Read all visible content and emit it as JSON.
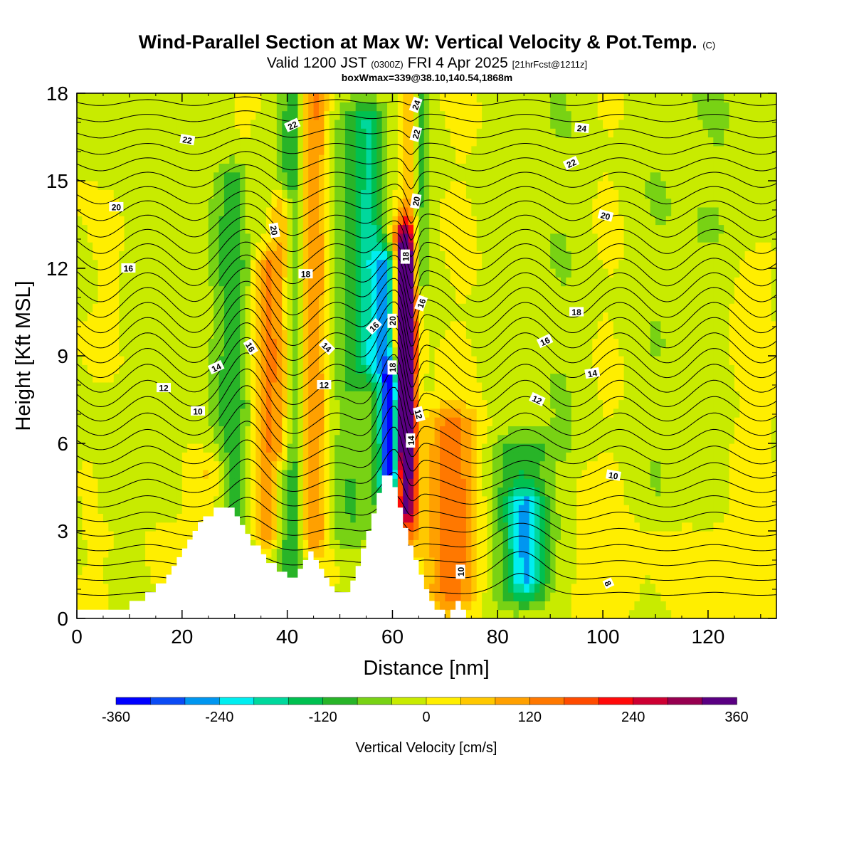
{
  "header": {
    "title_main": "Wind-Parallel Section at Max W: Vertical Velocity & Pot.Temp.",
    "title_mark": "(C)",
    "valid_prefix": "Valid 1200 JST",
    "valid_utc": "(0300Z)",
    "valid_date": "FRI 4 Apr 2025",
    "fcst": "[21hrFcst@1211z]",
    "boxinfo": "boxWmax=339@38.10,140.54,1868m"
  },
  "chart_data": {
    "type": "heatmap",
    "title": "Wind-Parallel Section at Max W: Vertical Velocity & Pot.Temp.",
    "xlabel": "Distance [nm]",
    "ylabel": "Height [Kft MSL]",
    "xlim": [
      0,
      133
    ],
    "ylim": [
      0,
      18
    ],
    "xticks": [
      0,
      20,
      40,
      60,
      80,
      100,
      120
    ],
    "yticks": [
      0,
      3,
      6,
      9,
      12,
      15,
      18
    ],
    "grid": false,
    "colorbar": {
      "title": "Vertical Velocity [cm/s]",
      "placement": "bottom",
      "range": [
        -360,
        360
      ],
      "labels": [
        "-360",
        "-240",
        "-120",
        "0",
        "120",
        "240",
        "360"
      ],
      "label_values": [
        -360,
        -240,
        -120,
        0,
        120,
        240,
        360
      ],
      "colors": [
        "#0000ff",
        "#0b4bf5",
        "#0096f0",
        "#00eef0",
        "#00d89c",
        "#00c050",
        "#28b428",
        "#78d214",
        "#c8eb00",
        "#ffee00",
        "#ffc800",
        "#ffa000",
        "#ff7800",
        "#ff4b00",
        "#ff0a0a",
        "#cd0032",
        "#960050",
        "#5a0082"
      ]
    },
    "terrain": [
      [
        0,
        0.3
      ],
      [
        10,
        0.3
      ],
      [
        10,
        0.6
      ],
      [
        13,
        0.6
      ],
      [
        13,
        0.9
      ],
      [
        15,
        0.9
      ],
      [
        15,
        1.2
      ],
      [
        17,
        1.2
      ],
      [
        17,
        1.5
      ],
      [
        18,
        1.5
      ],
      [
        18,
        1.8
      ],
      [
        19,
        1.8
      ],
      [
        19,
        2.1
      ],
      [
        20,
        2.1
      ],
      [
        20,
        2.4
      ],
      [
        21,
        2.4
      ],
      [
        21,
        2.7
      ],
      [
        22,
        2.7
      ],
      [
        22,
        3.0
      ],
      [
        23,
        3.0
      ],
      [
        23,
        3.3
      ],
      [
        24,
        3.3
      ],
      [
        24,
        3.5
      ],
      [
        26,
        3.5
      ],
      [
        26,
        3.8
      ],
      [
        30,
        3.8
      ],
      [
        30,
        3.5
      ],
      [
        31,
        3.5
      ],
      [
        31,
        3.2
      ],
      [
        32,
        3.2
      ],
      [
        32,
        2.9
      ],
      [
        33,
        2.9
      ],
      [
        33,
        2.5
      ],
      [
        35,
        2.5
      ],
      [
        35,
        2.2
      ],
      [
        36,
        2.2
      ],
      [
        36,
        1.9
      ],
      [
        38,
        1.9
      ],
      [
        38,
        1.6
      ],
      [
        40,
        1.6
      ],
      [
        40,
        1.4
      ],
      [
        42,
        1.4
      ],
      [
        42,
        1.7
      ],
      [
        43,
        1.7
      ],
      [
        43,
        2.0
      ],
      [
        44,
        2.0
      ],
      [
        44,
        2.3
      ],
      [
        45,
        2.3
      ],
      [
        45,
        2.0
      ],
      [
        46,
        2.0
      ],
      [
        46,
        1.7
      ],
      [
        47,
        1.7
      ],
      [
        47,
        1.4
      ],
      [
        48,
        1.4
      ],
      [
        48,
        1.1
      ],
      [
        49,
        1.1
      ],
      [
        49,
        0.9
      ],
      [
        52,
        0.9
      ],
      [
        52,
        1.3
      ],
      [
        53,
        1.3
      ],
      [
        53,
        1.8
      ],
      [
        54,
        1.8
      ],
      [
        54,
        2.4
      ],
      [
        55,
        2.4
      ],
      [
        55,
        3.0
      ],
      [
        56,
        3.0
      ],
      [
        56,
        3.6
      ],
      [
        57,
        3.6
      ],
      [
        57,
        4.3
      ],
      [
        58,
        4.3
      ],
      [
        58,
        4.9
      ],
      [
        60,
        4.9
      ],
      [
        60,
        4.5
      ],
      [
        61,
        4.5
      ],
      [
        61,
        3.8
      ],
      [
        62,
        3.8
      ],
      [
        62,
        3.1
      ],
      [
        63,
        3.1
      ],
      [
        63,
        2.5
      ],
      [
        64,
        2.5
      ],
      [
        64,
        2.0
      ],
      [
        65,
        2.0
      ],
      [
        65,
        1.5
      ],
      [
        66,
        1.5
      ],
      [
        66,
        1.0
      ],
      [
        67,
        1.0
      ],
      [
        67,
        0.6
      ],
      [
        68,
        0.6
      ],
      [
        68,
        0.3
      ],
      [
        70,
        0.3
      ],
      [
        70,
        0.0
      ],
      [
        71,
        0.0
      ],
      [
        71,
        0.3
      ],
      [
        72,
        0.3
      ],
      [
        72,
        0.6
      ],
      [
        73,
        0.6
      ],
      [
        73,
        0.3
      ],
      [
        74,
        0.3
      ],
      [
        74,
        0.0
      ],
      [
        133,
        0.0
      ]
    ],
    "field_blobs": [
      {
        "x": 31,
        "y0": 1.5,
        "y1": 15,
        "w": 4.5,
        "v": -140
      },
      {
        "x": 33,
        "y0": 2,
        "y1": 15,
        "w": 2.5,
        "v": 80
      },
      {
        "x": 36,
        "y0": 3,
        "y1": 12,
        "w": 2,
        "v": 140
      },
      {
        "x": 39,
        "y0": 6,
        "y1": 14,
        "w": 2,
        "v": 130
      },
      {
        "x": 41,
        "y0": 1.5,
        "y1": 18,
        "w": 2.5,
        "v": -110
      },
      {
        "x": 45,
        "y0": 3,
        "y1": 18,
        "w": 2.5,
        "v": 120
      },
      {
        "x": 52,
        "y0": 3,
        "y1": 17,
        "w": 4,
        "v": -70
      },
      {
        "x": 56,
        "y0": 9,
        "y1": 17,
        "w": 3,
        "v": -140
      },
      {
        "x": 59,
        "y0": 4.5,
        "y1": 12,
        "w": 2.5,
        "v": -220
      },
      {
        "x": 59.8,
        "y0": 4.8,
        "y1": 8,
        "w": 1.2,
        "v": -330
      },
      {
        "x": 62,
        "y0": 4,
        "y1": 13,
        "w": 2,
        "v": 290
      },
      {
        "x": 62.5,
        "y0": 6,
        "y1": 12,
        "w": 1.2,
        "v": 339
      },
      {
        "x": 63.5,
        "y0": 3,
        "y1": 18,
        "w": 1.5,
        "v": 130
      },
      {
        "x": 65,
        "y0": 12,
        "y1": 18,
        "w": 2,
        "v": -110
      },
      {
        "x": 71,
        "y0": 1,
        "y1": 6.5,
        "w": 5,
        "v": 150
      },
      {
        "x": 85,
        "y0": 1,
        "y1": 5.5,
        "w": 6,
        "v": -100
      },
      {
        "x": 85.5,
        "y0": 1.5,
        "y1": 3.8,
        "w": 3.5,
        "v": -160
      },
      {
        "x": 90,
        "y0": 6,
        "y1": 18,
        "w": 10,
        "v": -40
      },
      {
        "x": 100,
        "y0": 1,
        "y1": 18,
        "w": 8,
        "v": 25
      },
      {
        "x": 115,
        "y0": 4,
        "y1": 18,
        "w": 15,
        "v": -40
      },
      {
        "x": 125,
        "y0": 1,
        "y1": 12,
        "w": 8,
        "v": 30
      },
      {
        "x": 12,
        "y0": 4,
        "y1": 18,
        "w": 10,
        "v": -25
      },
      {
        "x": 7,
        "y0": 9,
        "y1": 14,
        "w": 3,
        "v": 30
      },
      {
        "x": 25,
        "y0": 3,
        "y1": 5,
        "w": 4,
        "v": 70
      }
    ],
    "isotherm_levels": [
      8,
      10,
      12,
      14,
      16,
      18,
      20,
      22,
      24
    ],
    "contour_labels": [
      {
        "text": "22",
        "x": 21,
        "y": 16.4,
        "rot": -10
      },
      {
        "text": "22",
        "x": 41,
        "y": 16.9,
        "rot": 25
      },
      {
        "text": "24",
        "x": 64.5,
        "y": 17.6,
        "rot": 70
      },
      {
        "text": "22",
        "x": 64.5,
        "y": 16.6,
        "rot": 75
      },
      {
        "text": "24",
        "x": 96,
        "y": 16.8,
        "rot": -5
      },
      {
        "text": "22",
        "x": 94,
        "y": 15.6,
        "rot": 25
      },
      {
        "text": "20",
        "x": 7.5,
        "y": 14.1,
        "rot": 0
      },
      {
        "text": "20",
        "x": 64.5,
        "y": 14.3,
        "rot": 80
      },
      {
        "text": "20",
        "x": 100.5,
        "y": 13.8,
        "rot": -15
      },
      {
        "text": "20",
        "x": 37.5,
        "y": 13.3,
        "rot": -80
      },
      {
        "text": "18",
        "x": 62.5,
        "y": 12.4,
        "rot": 90
      },
      {
        "text": "16",
        "x": 9.8,
        "y": 12.0,
        "rot": 0
      },
      {
        "text": "18",
        "x": 43.5,
        "y": 11.8,
        "rot": 0
      },
      {
        "text": "16",
        "x": 65.5,
        "y": 10.8,
        "rot": 70
      },
      {
        "text": "18",
        "x": 95,
        "y": 10.5,
        "rot": 0
      },
      {
        "text": "16",
        "x": 56.5,
        "y": 10.0,
        "rot": 45
      },
      {
        "text": "20",
        "x": 60,
        "y": 10.2,
        "rot": 90
      },
      {
        "text": "16",
        "x": 33,
        "y": 9.3,
        "rot": -60
      },
      {
        "text": "14",
        "x": 47.5,
        "y": 9.3,
        "rot": -45
      },
      {
        "text": "16",
        "x": 89,
        "y": 9.5,
        "rot": 25
      },
      {
        "text": "14",
        "x": 26.5,
        "y": 8.6,
        "rot": 25
      },
      {
        "text": "18",
        "x": 60,
        "y": 8.6,
        "rot": 90
      },
      {
        "text": "14",
        "x": 98,
        "y": 8.4,
        "rot": 10
      },
      {
        "text": "12",
        "x": 16.5,
        "y": 7.9,
        "rot": 0
      },
      {
        "text": "12",
        "x": 47,
        "y": 8.0,
        "rot": 0
      },
      {
        "text": "12",
        "x": 87.5,
        "y": 7.5,
        "rot": -25
      },
      {
        "text": "10",
        "x": 23,
        "y": 7.1,
        "rot": 0
      },
      {
        "text": "12",
        "x": 65,
        "y": 7.0,
        "rot": -75
      },
      {
        "text": "14",
        "x": 63.5,
        "y": 6.1,
        "rot": 90
      },
      {
        "text": "10",
        "x": 102,
        "y": 4.9,
        "rot": -10
      },
      {
        "text": "10",
        "x": 73,
        "y": 1.6,
        "rot": 90
      },
      {
        "text": "8",
        "x": 101,
        "y": 1.2,
        "rot": -65
      }
    ]
  }
}
